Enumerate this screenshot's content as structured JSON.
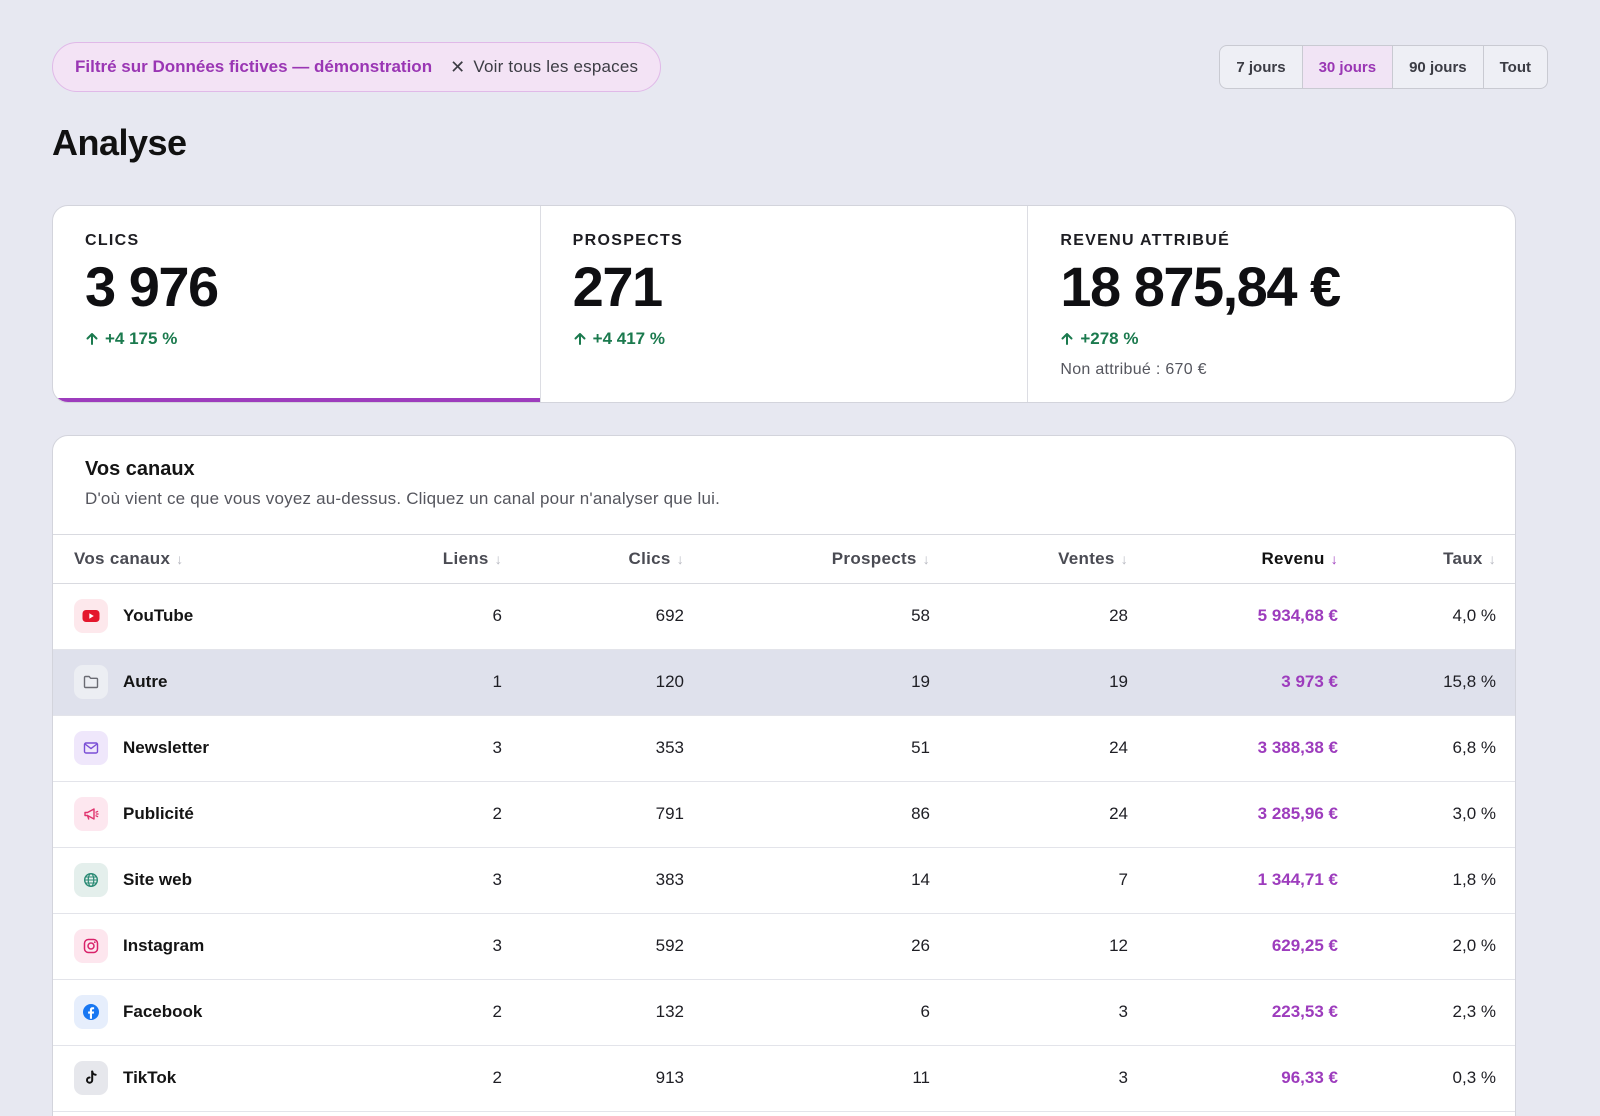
{
  "filter": {
    "label": "Filtré sur Données fictives — démonstration",
    "clear_label": "Voir tous les espaces"
  },
  "range": {
    "options": [
      "7 jours",
      "30 jours",
      "90 jours",
      "Tout"
    ],
    "selected": "30 jours"
  },
  "page_title": "Analyse",
  "kpis": [
    {
      "label": "CLICS",
      "value": "3 976",
      "delta": "+4 175 %",
      "active": true
    },
    {
      "label": "PROSPECTS",
      "value": "271",
      "delta": "+4 417 %"
    },
    {
      "label": "REVENU ATTRIBUÉ",
      "value": "18 875,84 €",
      "delta": "+278 %",
      "note": "Non attribué : 670 €"
    }
  ],
  "channels": {
    "title": "Vos canaux",
    "subtitle": "D'où vient ce que vous voyez au-dessus. Cliquez un canal pour n'analyser que lui.",
    "columns": {
      "name": "Vos canaux",
      "links": "Liens",
      "clicks": "Clics",
      "prospects": "Prospects",
      "sales": "Ventes",
      "revenue": "Revenu",
      "rate": "Taux"
    },
    "sorted_by": "revenue",
    "rows": [
      {
        "name": "YouTube",
        "icon": "youtube-icon",
        "links": "6",
        "clicks": "692",
        "prospects": "58",
        "sales": "28",
        "revenue": "5 934,68 €",
        "rate": "4,0 %"
      },
      {
        "name": "Autre",
        "icon": "folder-icon",
        "links": "1",
        "clicks": "120",
        "prospects": "19",
        "sales": "19",
        "revenue": "3 973 €",
        "rate": "15,8 %"
      },
      {
        "name": "Newsletter",
        "icon": "mail-icon",
        "links": "3",
        "clicks": "353",
        "prospects": "51",
        "sales": "24",
        "revenue": "3 388,38 €",
        "rate": "6,8 %"
      },
      {
        "name": "Publicité",
        "icon": "megaphone-icon",
        "links": "2",
        "clicks": "791",
        "prospects": "86",
        "sales": "24",
        "revenue": "3 285,96 €",
        "rate": "3,0 %"
      },
      {
        "name": "Site web",
        "icon": "globe-icon",
        "links": "3",
        "clicks": "383",
        "prospects": "14",
        "sales": "7",
        "revenue": "1 344,71 €",
        "rate": "1,8 %"
      },
      {
        "name": "Instagram",
        "icon": "instagram-icon",
        "links": "3",
        "clicks": "592",
        "prospects": "26",
        "sales": "12",
        "revenue": "629,25 €",
        "rate": "2,0 %"
      },
      {
        "name": "Facebook",
        "icon": "facebook-icon",
        "links": "2",
        "clicks": "132",
        "prospects": "6",
        "sales": "3",
        "revenue": "223,53 €",
        "rate": "2,3 %"
      },
      {
        "name": "TikTok",
        "icon": "tiktok-icon",
        "links": "2",
        "clicks": "913",
        "prospects": "11",
        "sales": "3",
        "revenue": "96,33 €",
        "rate": "0,3 %"
      }
    ]
  },
  "colors": {
    "accent": "#9d3cbd",
    "positive": "#1b7a4e",
    "background": "#e7e8f1"
  }
}
